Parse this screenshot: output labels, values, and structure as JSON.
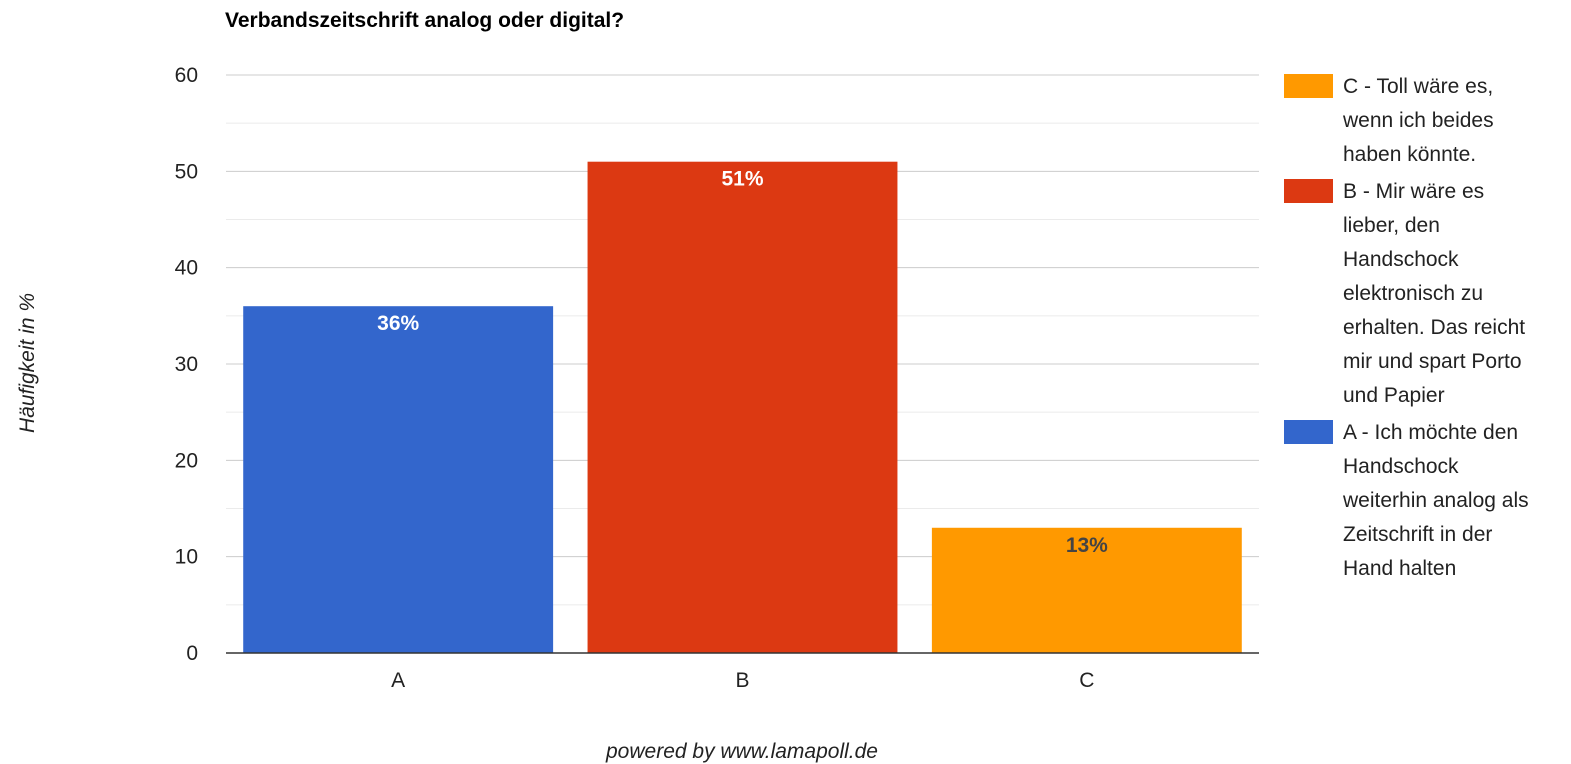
{
  "chart_data": {
    "type": "bar",
    "title": "Verbandszeitschrift analog oder digital?",
    "ylabel": "Häufigkeit in %",
    "categories": [
      "A",
      "B",
      "C"
    ],
    "values": [
      36,
      51,
      13
    ],
    "data_labels": [
      "36%",
      "51%",
      "13%"
    ],
    "colors": [
      "#3366cc",
      "#dc3912",
      "#ff9900"
    ],
    "ylim": [
      0,
      60
    ],
    "yticks": [
      0,
      10,
      20,
      30,
      40,
      50,
      60
    ],
    "grid": true,
    "legend_position": "right",
    "legend": [
      {
        "color": "#ff9900",
        "lines": [
          "C - Toll wäre es,",
          "wenn ich beides",
          "haben könnte."
        ]
      },
      {
        "color": "#dc3912",
        "lines": [
          "B - Mir wäre es",
          "lieber, den",
          "Handschock",
          "elektronisch zu",
          "erhalten. Das reicht",
          "mir und spart Porto",
          "und Papier"
        ]
      },
      {
        "color": "#3366cc",
        "lines": [
          "A - Ich möchte den",
          "Handschock",
          "weiterhin analog als",
          "Zeitschrift in der",
          "Hand halten"
        ]
      }
    ]
  },
  "footer": "powered by www.lamapoll.de"
}
